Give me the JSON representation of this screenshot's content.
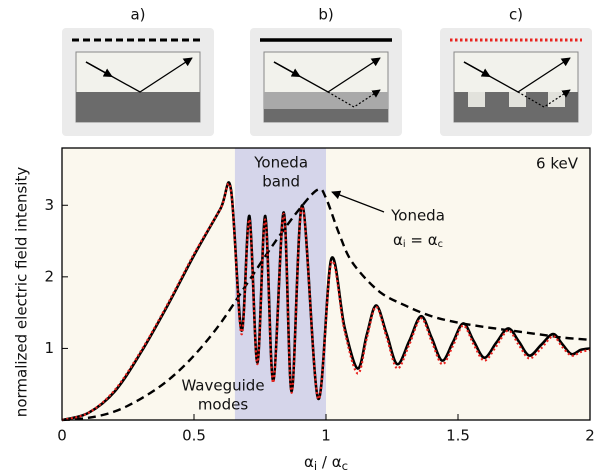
{
  "panel_labels": [
    "a)",
    "b)",
    "c)"
  ],
  "chart_data": {
    "type": "line",
    "y_label": "normalized electric field intensity",
    "x_label": [
      "α",
      "i",
      " / α",
      "c"
    ],
    "xlim": [
      0,
      2
    ],
    "ylim": [
      0,
      3.8
    ],
    "xticks": [
      0,
      0.5,
      1,
      1.5,
      2
    ],
    "yticks": [
      1,
      2,
      3
    ],
    "band": {
      "xrange": [
        0.655,
        1.0
      ],
      "color": "#d5d5ea"
    },
    "background": "#fbf8ee",
    "annotations": {
      "energy": "6 keV",
      "band_label": [
        "Yoneda",
        "band"
      ],
      "modes_label": [
        "Waveguide",
        "modes"
      ],
      "yoneda": "Yoneda",
      "yoneda_condition": [
        "α",
        "i",
        " = α",
        "c"
      ]
    },
    "series": [
      {
        "style": "dashed",
        "color": "#000000",
        "x": [
          0,
          0.1,
          0.2,
          0.3,
          0.4,
          0.5,
          0.6,
          0.7,
          0.8,
          0.9,
          0.97,
          1.0,
          1.05,
          1.1,
          1.2,
          1.3,
          1.4,
          1.5,
          1.6,
          1.7,
          1.8,
          1.9,
          2.0
        ],
        "values": [
          0,
          0.03,
          0.12,
          0.3,
          0.55,
          0.9,
          1.35,
          1.9,
          2.45,
          2.95,
          3.22,
          3.1,
          2.6,
          2.2,
          1.8,
          1.6,
          1.45,
          1.36,
          1.3,
          1.25,
          1.2,
          1.15,
          1.12
        ]
      },
      {
        "style": "solid",
        "color": "#000000",
        "x": [
          0,
          0.1,
          0.2,
          0.3,
          0.4,
          0.5,
          0.6,
          0.64,
          0.68,
          0.71,
          0.74,
          0.77,
          0.8,
          0.84,
          0.87,
          0.91,
          0.97,
          1.02,
          1.07,
          1.12,
          1.155,
          1.19,
          1.23,
          1.27,
          1.315,
          1.36,
          1.4,
          1.44,
          1.48,
          1.52,
          1.56,
          1.6,
          1.645,
          1.69,
          1.73,
          1.77,
          1.815,
          1.86,
          1.895,
          1.93,
          1.965,
          2.0
        ],
        "values": [
          0,
          0.1,
          0.4,
          0.95,
          1.6,
          2.3,
          2.95,
          3.22,
          1.25,
          2.85,
          0.8,
          2.85,
          0.55,
          2.9,
          0.4,
          3.0,
          0.3,
          2.25,
          1.3,
          0.72,
          1.2,
          1.6,
          1.2,
          0.78,
          1.1,
          1.45,
          1.15,
          0.83,
          1.08,
          1.35,
          1.1,
          0.87,
          1.08,
          1.28,
          1.1,
          0.9,
          1.05,
          1.2,
          1.06,
          0.92,
          0.98,
          1.0
        ]
      },
      {
        "style": "dotted",
        "color": "#e8231f",
        "x": [
          0,
          0.1,
          0.2,
          0.3,
          0.4,
          0.5,
          0.6,
          0.64,
          0.68,
          0.71,
          0.74,
          0.77,
          0.8,
          0.84,
          0.87,
          0.91,
          0.97,
          1.02,
          1.07,
          1.12,
          1.155,
          1.19,
          1.23,
          1.27,
          1.315,
          1.36,
          1.4,
          1.44,
          1.48,
          1.52,
          1.56,
          1.6,
          1.645,
          1.69,
          1.73,
          1.77,
          1.815,
          1.86,
          1.895,
          1.93,
          1.965,
          2.0
        ],
        "values": [
          0,
          0.1,
          0.42,
          0.97,
          1.62,
          2.32,
          2.95,
          3.2,
          1.2,
          2.8,
          0.78,
          2.8,
          0.52,
          2.88,
          0.38,
          2.98,
          0.3,
          2.2,
          1.25,
          0.65,
          1.15,
          1.58,
          1.15,
          0.72,
          1.05,
          1.42,
          1.1,
          0.78,
          1.03,
          1.32,
          1.05,
          0.83,
          1.03,
          1.25,
          1.05,
          0.86,
          1.0,
          1.17,
          1.02,
          0.9,
          0.95,
          0.98
        ]
      }
    ]
  }
}
